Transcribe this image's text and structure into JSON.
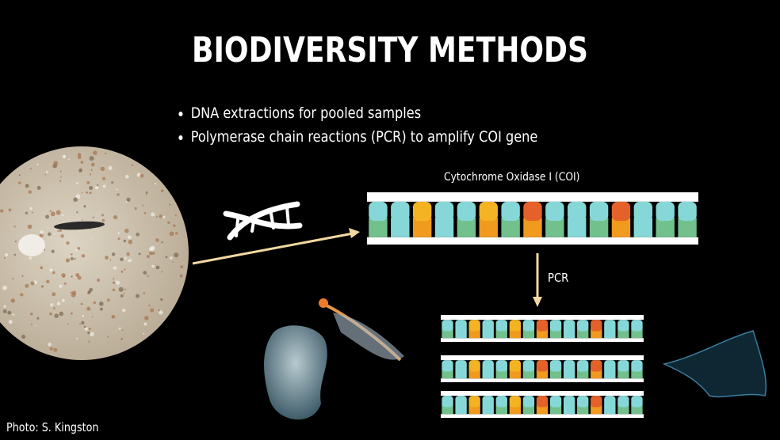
{
  "slide": {
    "title": "BIODIVERSITY METHODS",
    "bullets": [
      "DNA extractions for pooled samples",
      "Polymerase chain reactions (PCR) to amplify COI gene"
    ],
    "gene_label": "Cytochrome Oxidase I (COI)",
    "pcr_label": "PCR",
    "photo_credit": "Photo: S. Kingston"
  }
}
